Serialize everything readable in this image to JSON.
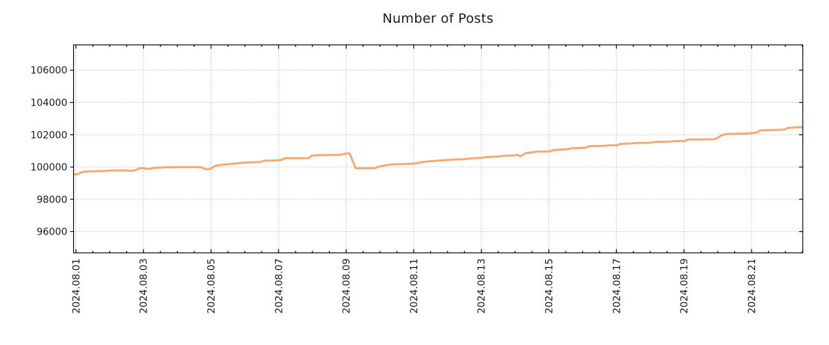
{
  "chart_data": {
    "type": "line",
    "title": "Number of Posts",
    "grid": {
      "show": true,
      "style": "dotted",
      "color": "#ababab"
    },
    "axis_color": "#000000",
    "text_color": "#1a1a1a",
    "background": "#ffffff",
    "legend": "none",
    "x_axis": {
      "tick_labels": [
        "2024.08.01",
        "2024.08.03",
        "2024.08.05",
        "2024.08.07",
        "2024.08.09",
        "2024.08.11",
        "2024.08.13",
        "2024.08.15",
        "2024.08.17",
        "2024.08.19",
        "2024.08.21"
      ],
      "tick_days": [
        1,
        3,
        5,
        7,
        9,
        11,
        13,
        15,
        17,
        19,
        21
      ],
      "minor_tick_step_days": 0.5,
      "range_days": [
        0.93,
        22.515
      ],
      "label_rotation_deg": -90,
      "tick_label_font_px": 14
    },
    "y_axis": {
      "ticks": [
        96000,
        98000,
        100000,
        102000,
        104000,
        106000
      ],
      "range": [
        94680,
        107570
      ],
      "tick_label_font_px": 14
    },
    "series": [
      {
        "name": "Number of Posts",
        "color": "#f5a970",
        "stroke_width": 3,
        "points": [
          [
            0.93,
            99555
          ],
          [
            1.05,
            99560
          ],
          [
            1.12,
            99640
          ],
          [
            1.22,
            99700
          ],
          [
            1.35,
            99725
          ],
          [
            1.85,
            99760
          ],
          [
            2.05,
            99785
          ],
          [
            2.5,
            99785
          ],
          [
            2.62,
            99765
          ],
          [
            2.75,
            99790
          ],
          [
            2.85,
            99905
          ],
          [
            3.0,
            99940
          ],
          [
            3.08,
            99885
          ],
          [
            3.22,
            99890
          ],
          [
            3.32,
            99950
          ],
          [
            3.7,
            99985
          ],
          [
            4.05,
            99995
          ],
          [
            4.6,
            99990
          ],
          [
            4.72,
            99975
          ],
          [
            4.82,
            99870
          ],
          [
            5.0,
            99880
          ],
          [
            5.07,
            100015
          ],
          [
            5.15,
            100090
          ],
          [
            5.35,
            100150
          ],
          [
            5.65,
            100210
          ],
          [
            5.95,
            100265
          ],
          [
            6.15,
            100295
          ],
          [
            6.45,
            100315
          ],
          [
            6.58,
            100390
          ],
          [
            7.0,
            100415
          ],
          [
            7.1,
            100450
          ],
          [
            7.18,
            100540
          ],
          [
            7.9,
            100555
          ],
          [
            7.98,
            100710
          ],
          [
            8.15,
            100730
          ],
          [
            8.8,
            100750
          ],
          [
            8.95,
            100810
          ],
          [
            9.03,
            100855
          ],
          [
            9.1,
            100850
          ],
          [
            9.28,
            99920
          ],
          [
            9.85,
            99925
          ],
          [
            9.95,
            100020
          ],
          [
            10.1,
            100080
          ],
          [
            10.35,
            100160
          ],
          [
            10.75,
            100190
          ],
          [
            11.05,
            100230
          ],
          [
            11.28,
            100320
          ],
          [
            11.55,
            100370
          ],
          [
            11.9,
            100420
          ],
          [
            12.15,
            100460
          ],
          [
            12.52,
            100480
          ],
          [
            12.65,
            100530
          ],
          [
            13.02,
            100575
          ],
          [
            13.12,
            100615
          ],
          [
            13.5,
            100650
          ],
          [
            13.68,
            100700
          ],
          [
            14.0,
            100715
          ],
          [
            14.06,
            100760
          ],
          [
            14.16,
            100665
          ],
          [
            14.3,
            100850
          ],
          [
            14.48,
            100905
          ],
          [
            14.65,
            100955
          ],
          [
            15.0,
            100965
          ],
          [
            15.15,
            101055
          ],
          [
            15.55,
            101100
          ],
          [
            15.68,
            101170
          ],
          [
            16.1,
            101195
          ],
          [
            16.18,
            101290
          ],
          [
            16.6,
            101310
          ],
          [
            16.75,
            101335
          ],
          [
            17.0,
            101350
          ],
          [
            17.12,
            101435
          ],
          [
            17.45,
            101460
          ],
          [
            17.58,
            101485
          ],
          [
            18.0,
            101505
          ],
          [
            18.15,
            101555
          ],
          [
            18.55,
            101575
          ],
          [
            18.75,
            101605
          ],
          [
            19.02,
            101610
          ],
          [
            19.12,
            101700
          ],
          [
            19.9,
            101715
          ],
          [
            20.02,
            101835
          ],
          [
            20.12,
            101975
          ],
          [
            20.25,
            102040
          ],
          [
            20.65,
            102065
          ],
          [
            20.95,
            102090
          ],
          [
            21.05,
            102105
          ],
          [
            21.15,
            102135
          ],
          [
            21.25,
            102270
          ],
          [
            21.8,
            102305
          ],
          [
            21.97,
            102320
          ],
          [
            22.08,
            102425
          ],
          [
            22.25,
            102445
          ],
          [
            22.51,
            102470
          ]
        ]
      }
    ]
  }
}
